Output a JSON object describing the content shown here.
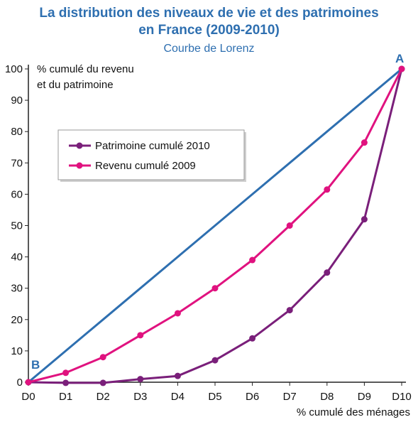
{
  "header": {
    "title_line1": "La distribution des niveaux de vie et des patrimoines",
    "title_line2": "en France (2009-2010)",
    "subtitle": "Courbe de Lorenz"
  },
  "chart_data": {
    "type": "line",
    "x": [
      "D0",
      "D1",
      "D2",
      "D3",
      "D4",
      "D5",
      "D6",
      "D7",
      "D8",
      "D9",
      "D10"
    ],
    "ylim": [
      0,
      100
    ],
    "yticks": [
      0,
      10,
      20,
      30,
      40,
      50,
      60,
      70,
      80,
      90,
      100
    ],
    "ylabel_line1": "% cumulé du revenu",
    "ylabel_line2": "et du patrimoine",
    "xlabel": "% cumulé des ménages",
    "point_labels": {
      "origin": "B",
      "end": "A"
    },
    "legend_position": "top-left",
    "grid": false,
    "series": [
      {
        "name": "",
        "role": "equality-line",
        "color": "#2e6fb0",
        "values": [
          0,
          10,
          20,
          30,
          40,
          50,
          60,
          70,
          80,
          90,
          100
        ],
        "markers": false
      },
      {
        "name": "Patrimoine cumulé 2010",
        "color": "#7a1f7a",
        "values": [
          0,
          -0.2,
          -0.2,
          1,
          2,
          7,
          14,
          23,
          35,
          52,
          100
        ],
        "markers": true
      },
      {
        "name": "Revenu cumulé 2009",
        "color": "#e0127f",
        "values": [
          0,
          3,
          8,
          15,
          22,
          30,
          39,
          50,
          61.5,
          76.5,
          100
        ],
        "markers": true
      }
    ]
  }
}
